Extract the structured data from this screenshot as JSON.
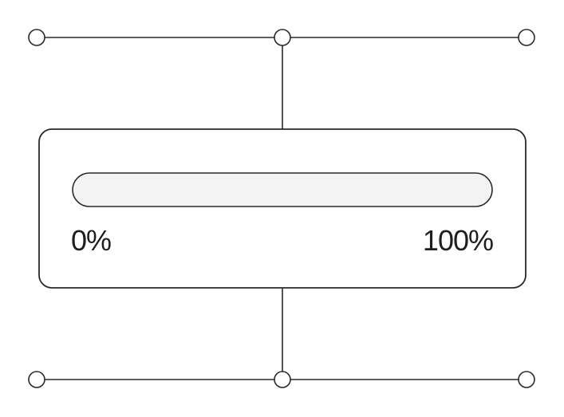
{
  "progress": {
    "value": 0,
    "min_label": "0%",
    "max_label": "100%"
  },
  "colors": {
    "stroke": "#2a2a2a",
    "track": "#f3f3f3",
    "background": "#ffffff"
  }
}
